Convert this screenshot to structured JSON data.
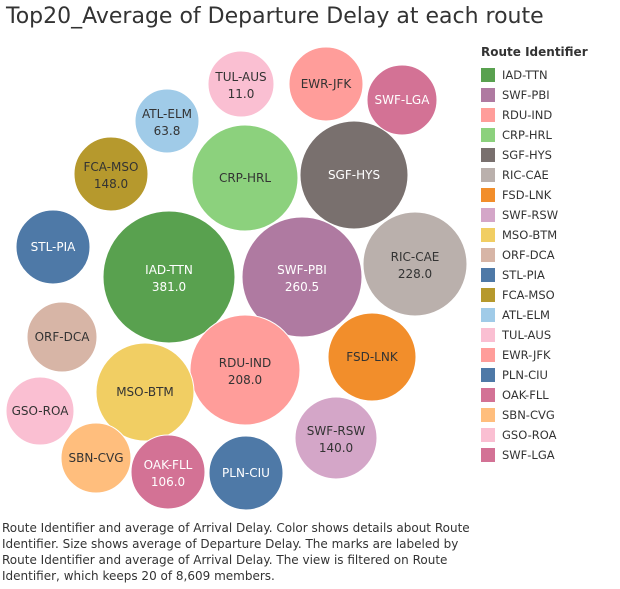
{
  "title": "Top20_Average of Departure Delay at each route",
  "legend": {
    "title": "Route Identifier",
    "placement": "right",
    "items": [
      {
        "label": "IAD-TTN",
        "color": "#59a14f"
      },
      {
        "label": "SWF-PBI",
        "color": "#af7aa1"
      },
      {
        "label": "RDU-IND",
        "color": "#ff9d9a"
      },
      {
        "label": "CRP-HRL",
        "color": "#8cd17d"
      },
      {
        "label": "SGF-HYS",
        "color": "#79706e"
      },
      {
        "label": "RIC-CAE",
        "color": "#bab0ac"
      },
      {
        "label": "FSD-LNK",
        "color": "#f28e2b"
      },
      {
        "label": "SWF-RSW",
        "color": "#d4a6c8"
      },
      {
        "label": "MSO-BTM",
        "color": "#f1ce63"
      },
      {
        "label": "ORF-DCA",
        "color": "#d7b5a6"
      },
      {
        "label": "STL-PIA",
        "color": "#4e79a7"
      },
      {
        "label": "FCA-MSO",
        "color": "#b6992d"
      },
      {
        "label": "ATL-ELM",
        "color": "#a0cbe8"
      },
      {
        "label": "TUL-AUS",
        "color": "#fabfd2"
      },
      {
        "label": "EWR-JFK",
        "color": "#ff9d9a"
      },
      {
        "label": "PLN-CIU",
        "color": "#4e79a7"
      },
      {
        "label": "OAK-FLL",
        "color": "#d37295"
      },
      {
        "label": "SBN-CVG",
        "color": "#ffbe7d"
      },
      {
        "label": "GSO-ROA",
        "color": "#fabfd2"
      },
      {
        "label": "SWF-LGA",
        "color": "#d37295"
      }
    ]
  },
  "caption": "Route Identifier and average of Arrival Delay.  Color shows details about Route Identifier.  Size shows average of Departure Delay.  The marks are labeled by Route Identifier and average of Arrival Delay. The view is filtered on Route Identifier, which keeps 20 of 8,609 members.",
  "chart_data": {
    "type": "packed-bubble",
    "title": "Top20_Average of Departure Delay at each route",
    "size_measure": "average of Departure Delay",
    "label_measure": "average of Arrival Delay",
    "bubbles": [
      {
        "route": "IAD-TTN",
        "arrival_delay": "381.0",
        "color": "#59a14f",
        "dark_text": false
      },
      {
        "route": "SWF-PBI",
        "arrival_delay": "260.5",
        "color": "#af7aa1",
        "dark_text": false
      },
      {
        "route": "RDU-IND",
        "arrival_delay": "208.0",
        "color": "#ff9d9a",
        "dark_text": true
      },
      {
        "route": "CRP-HRL",
        "arrival_delay": null,
        "color": "#8cd17d",
        "dark_text": true
      },
      {
        "route": "SGF-HYS",
        "arrival_delay": null,
        "color": "#79706e",
        "dark_text": false
      },
      {
        "route": "RIC-CAE",
        "arrival_delay": "228.0",
        "color": "#bab0ac",
        "dark_text": true
      },
      {
        "route": "FSD-LNK",
        "arrival_delay": null,
        "color": "#f28e2b",
        "dark_text": true
      },
      {
        "route": "SWF-RSW",
        "arrival_delay": "140.0",
        "color": "#d4a6c8",
        "dark_text": true
      },
      {
        "route": "MSO-BTM",
        "arrival_delay": null,
        "color": "#f1ce63",
        "dark_text": true
      },
      {
        "route": "ORF-DCA",
        "arrival_delay": null,
        "color": "#d7b5a6",
        "dark_text": true
      },
      {
        "route": "STL-PIA",
        "arrival_delay": null,
        "color": "#4e79a7",
        "dark_text": false
      },
      {
        "route": "FCA-MSO",
        "arrival_delay": "148.0",
        "color": "#b6992d",
        "dark_text": true
      },
      {
        "route": "ATL-ELM",
        "arrival_delay": "63.8",
        "color": "#a0cbe8",
        "dark_text": true
      },
      {
        "route": "TUL-AUS",
        "arrival_delay": "11.0",
        "color": "#fabfd2",
        "dark_text": true
      },
      {
        "route": "EWR-JFK",
        "arrival_delay": null,
        "color": "#ff9d9a",
        "dark_text": true
      },
      {
        "route": "PLN-CIU",
        "arrival_delay": null,
        "color": "#4e79a7",
        "dark_text": false
      },
      {
        "route": "OAK-FLL",
        "arrival_delay": "106.0",
        "color": "#d37295",
        "dark_text": false
      },
      {
        "route": "SBN-CVG",
        "arrival_delay": null,
        "color": "#ffbe7d",
        "dark_text": true
      },
      {
        "route": "GSO-ROA",
        "arrival_delay": null,
        "color": "#fabfd2",
        "dark_text": true
      },
      {
        "route": "SWF-LGA",
        "arrival_delay": null,
        "color": "#d37295",
        "dark_text": false
      }
    ]
  }
}
